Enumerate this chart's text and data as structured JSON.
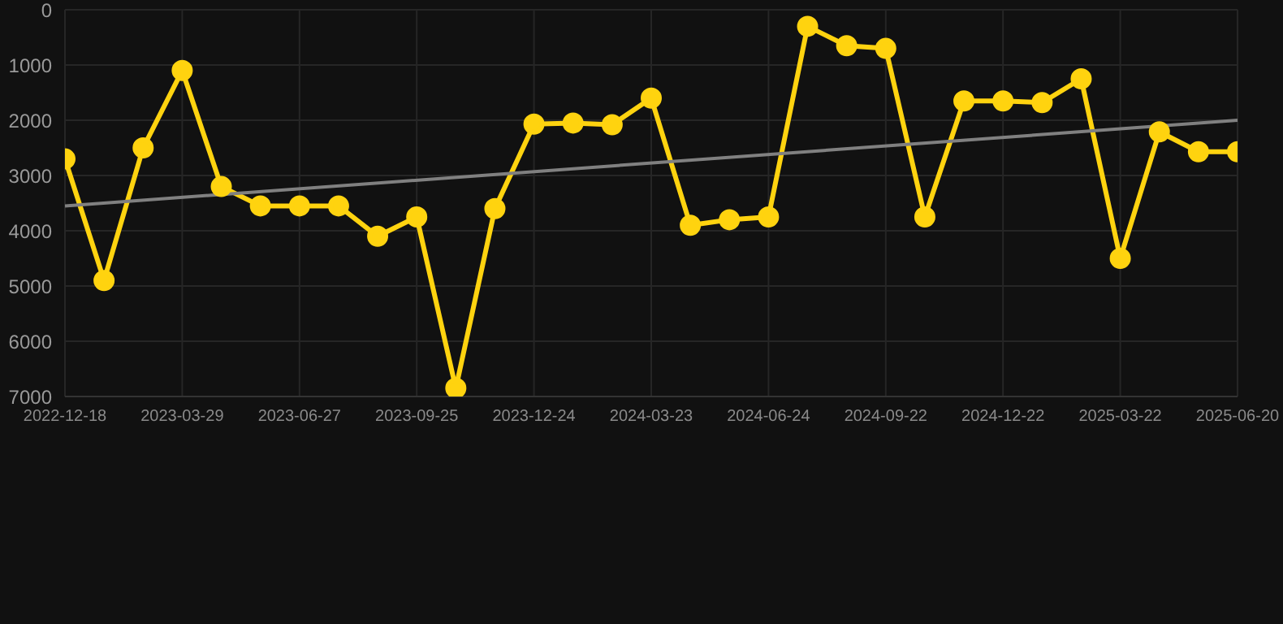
{
  "chart_data": {
    "type": "line",
    "categories": [
      "2022-12-18",
      null,
      null,
      "2023-03-29",
      null,
      null,
      "2023-06-27",
      null,
      null,
      "2023-09-25",
      null,
      null,
      "2023-12-24",
      null,
      null,
      "2024-03-23",
      null,
      null,
      "2024-06-24",
      null,
      null,
      "2024-09-22",
      null,
      null,
      "2024-12-22",
      null,
      null,
      "2025-03-22",
      null,
      null,
      "2025-06-20"
    ],
    "series": [
      {
        "color": "#ffd30f",
        "marker": "circle",
        "values": [
          2700,
          4900,
          2500,
          1100,
          3200,
          3550,
          3550,
          3550,
          4100,
          3750,
          6850,
          3600,
          2070,
          2050,
          2080,
          1600,
          3900,
          3800,
          3750,
          300,
          650,
          700,
          3750,
          1650,
          1650,
          1680,
          1250,
          4500,
          2210,
          2570,
          2570
        ]
      },
      {
        "type": "line",
        "color": "#808080",
        "marker": "none",
        "values": [
          3550,
          null,
          null,
          null,
          null,
          null,
          null,
          null,
          null,
          null,
          null,
          null,
          null,
          null,
          null,
          null,
          null,
          null,
          null,
          null,
          null,
          null,
          null,
          null,
          null,
          null,
          null,
          null,
          null,
          null,
          2000
        ]
      }
    ],
    "ylim": [
      7000,
      0
    ],
    "yticks": [
      0,
      1000,
      2000,
      3000,
      4000,
      5000,
      6000,
      7000
    ],
    "grid": true
  }
}
